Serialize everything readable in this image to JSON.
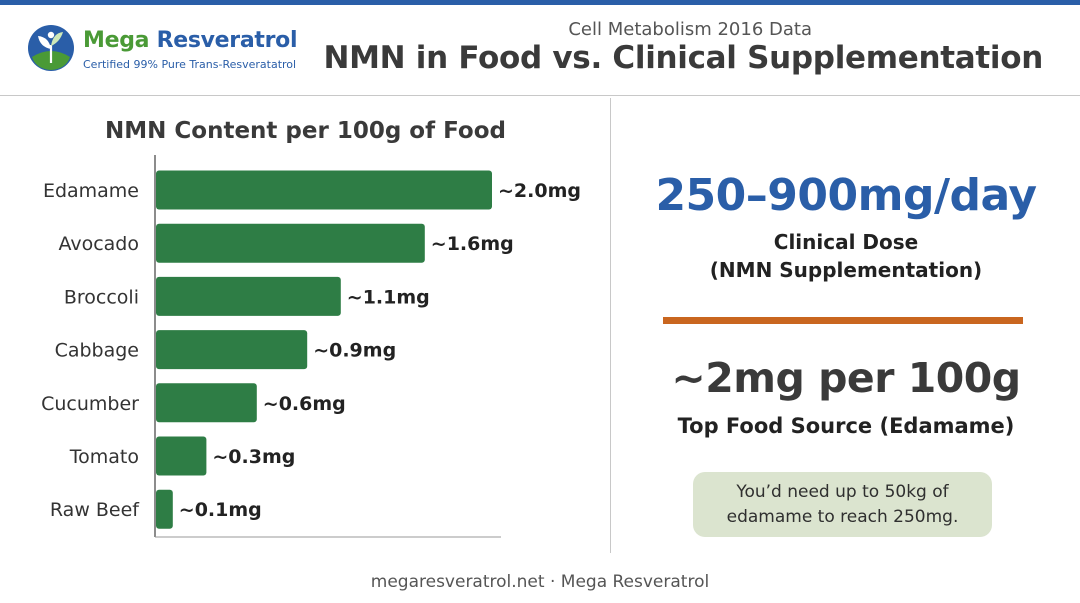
{
  "header": {
    "brand_word1": "Mega",
    "brand_word2": "Resveratrol",
    "brand_tagline": "Certified 99% Pure Trans-Resveratatrol",
    "subtitle": "Cell Metabolism 2016 Data",
    "title": "NMN in Food vs. Clinical Supplementation"
  },
  "colors": {
    "brand_blue": "#2a5ea8",
    "brand_green": "#4a9a36",
    "bar_green": "#2e7d45",
    "accent_orange": "#c9661f",
    "note_background": "#dbe4cf"
  },
  "icons": {
    "logo": "leaf-sprout-globe-icon"
  },
  "chart_data": {
    "type": "bar",
    "orientation": "horizontal",
    "title": "NMN Content per 100g of Food",
    "categories": [
      "Edamame",
      "Avocado",
      "Broccoli",
      "Cabbage",
      "Cucumber",
      "Tomato",
      "Raw Beef"
    ],
    "values": [
      2.0,
      1.6,
      1.1,
      0.9,
      0.6,
      0.3,
      0.1
    ],
    "value_labels": [
      "~2.0mg",
      "~1.6mg",
      "~1.1mg",
      "~0.9mg",
      "~0.6mg",
      "~0.3mg",
      "~0.1mg"
    ],
    "unit": "mg",
    "xlim": [
      0,
      2.0
    ],
    "grid": false,
    "legend": false
  },
  "panel": {
    "clinical_dose_value": "250–900mg/day",
    "clinical_dose_label_1": "Clinical Dose",
    "clinical_dose_label_2": "(NMN Supplementation)",
    "food_value": "~2mg per 100g",
    "food_label": "Top Food Source (Edamame)",
    "note_line_1": "You’d need up to 50kg of",
    "note_line_2": "edamame to reach 250mg."
  },
  "footer": {
    "text": "megaresveratrol.net · Mega Resveratrol"
  }
}
